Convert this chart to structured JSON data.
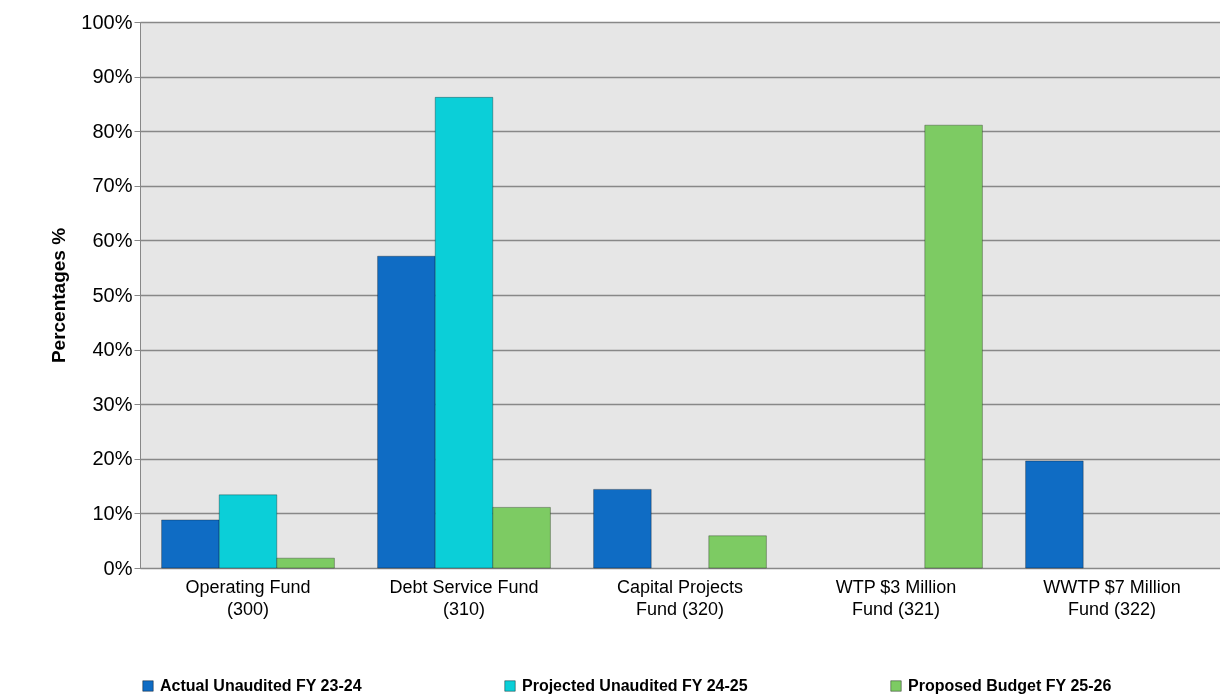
{
  "chart_data": {
    "type": "bar",
    "ylabel": "Percentages %",
    "categories": [
      "Operating Fund\n(300)",
      "Debt Service Fund\n(310)",
      "Capital Projects\nFund (320)",
      "WTP $3 Million\nFund (321)",
      "WWTP $7 Million\nFund (322)"
    ],
    "series": [
      {
        "name": "Actual Unaudited FY 23-24",
        "color": "#0f6cc4",
        "values": [
          8.8,
          57.1,
          14.4,
          null,
          19.6
        ]
      },
      {
        "name": "Projected Unaudited FY 24-25",
        "color": "#0bcfd8",
        "values": [
          13.4,
          86.2,
          null,
          null,
          null
        ]
      },
      {
        "name": "Proposed Budget FY 25-26",
        "color": "#7dcb63",
        "values": [
          1.8,
          11.1,
          5.9,
          81.1,
          null
        ]
      }
    ],
    "ylim": [
      0,
      100
    ],
    "yticks": [
      {
        "value": 0,
        "label": "0%"
      },
      {
        "value": 10,
        "label": "10%"
      },
      {
        "value": 20,
        "label": "20%"
      },
      {
        "value": 30,
        "label": "30%"
      },
      {
        "value": 40,
        "label": "40%"
      },
      {
        "value": 50,
        "label": "50%"
      },
      {
        "value": 60,
        "label": "60%"
      },
      {
        "value": 70,
        "label": "70%"
      },
      {
        "value": 80,
        "label": "80%"
      },
      {
        "value": 90,
        "label": "90%"
      },
      {
        "value": 100,
        "label": "100%"
      }
    ],
    "grid": "y",
    "legend": "bottom"
  }
}
